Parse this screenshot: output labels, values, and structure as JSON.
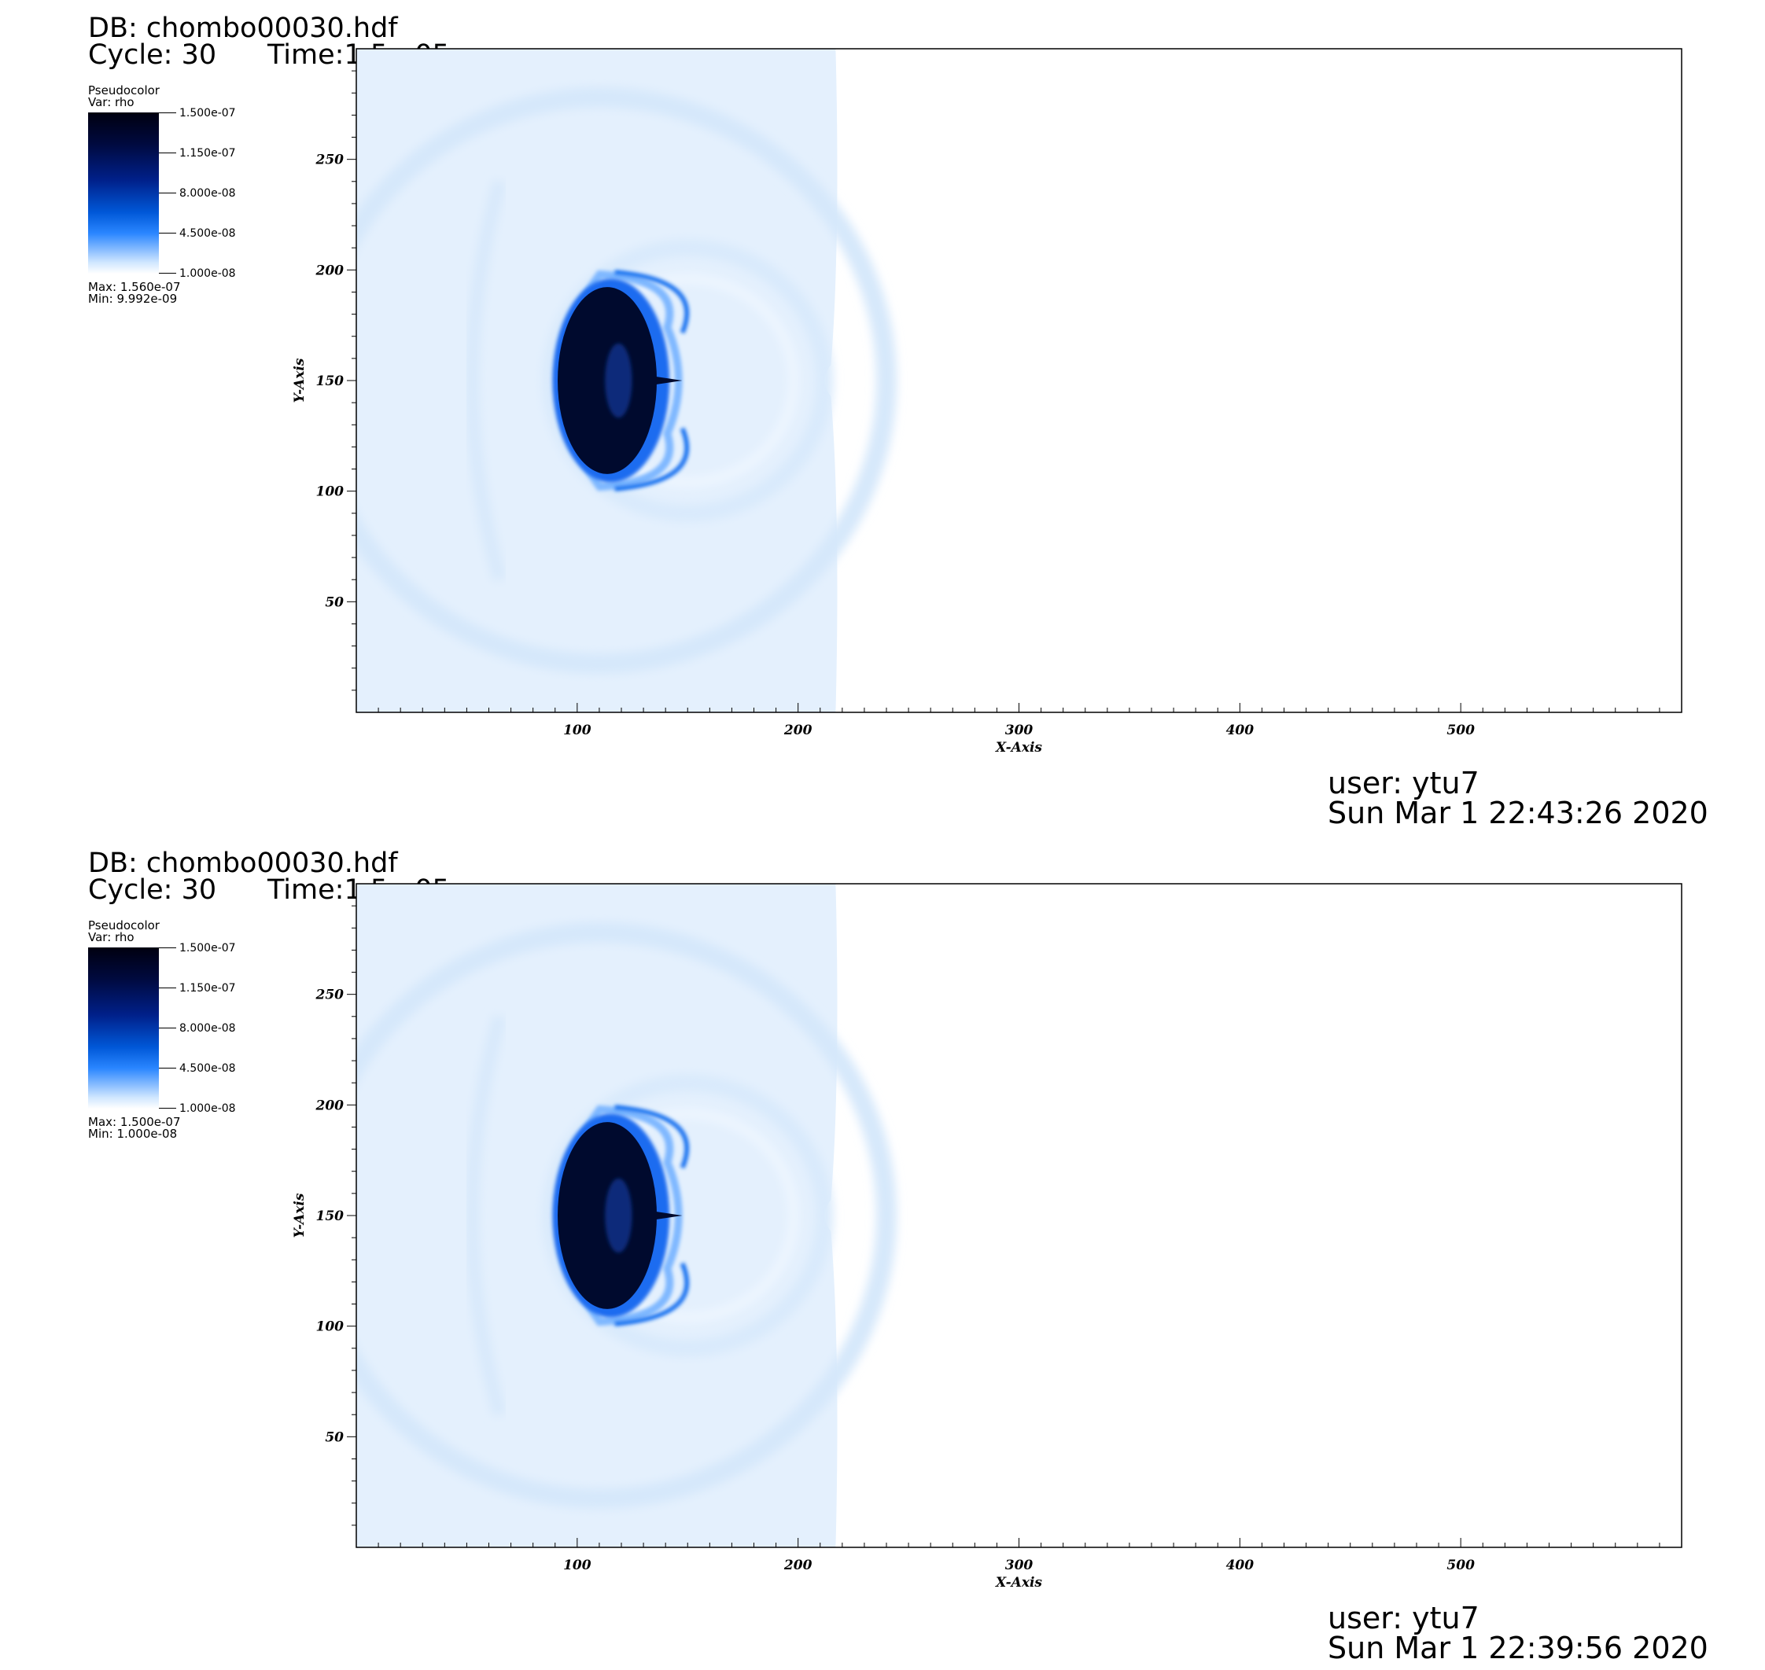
{
  "panels": [
    {
      "db": "DB: chombo00030.hdf",
      "cycle": "Cycle: 30",
      "time": "Time:1.5e-05",
      "legend": {
        "title": "Pseudocolor",
        "var": "Var: rho",
        "ticks": [
          "1.500e-07",
          "1.150e-07",
          "8.000e-08",
          "4.500e-08",
          "1.000e-08"
        ],
        "max": "Max:  1.560e-07",
        "min": "Min:  9.992e-09"
      },
      "user": "user: ytu7",
      "date": "Sun Mar  1 22:43:26 2020"
    },
    {
      "db": "DB: chombo00030.hdf",
      "cycle": "Cycle: 30",
      "time": "Time:1.5e-05",
      "legend": {
        "title": "Pseudocolor",
        "var": "Var: rho",
        "ticks": [
          "1.500e-07",
          "1.150e-07",
          "8.000e-08",
          "4.500e-08",
          "1.000e-08"
        ],
        "max": "Max:  1.500e-07",
        "min": "Min:  1.000e-08"
      },
      "user": "user: ytu7",
      "date": "Sun Mar  1 22:39:56 2020"
    }
  ],
  "chart_data": [
    {
      "type": "heatmap",
      "title": "",
      "variable": "rho",
      "xlabel": "X-Axis",
      "ylabel": "Y-Axis",
      "xlim": [
        0,
        600
      ],
      "ylim": [
        0,
        300
      ],
      "xticks": [
        100,
        200,
        300,
        400,
        500
      ],
      "yticks": [
        50,
        100,
        150,
        200,
        250
      ],
      "colorbar_range": [
        1e-08,
        1.5e-07
      ],
      "data_max": 1.56e-07,
      "data_min": 9.992e-09,
      "filled_x_extent": [
        0,
        217
      ],
      "dense_blob_center": [
        117,
        150
      ],
      "colors": {
        "background": "#e4f0fd",
        "dense": "#000a2e",
        "edge": "#1a6cf0"
      }
    },
    {
      "type": "heatmap",
      "title": "",
      "variable": "rho",
      "xlabel": "X-Axis",
      "ylabel": "Y-Axis",
      "xlim": [
        0,
        600
      ],
      "ylim": [
        0,
        300
      ],
      "xticks": [
        100,
        200,
        300,
        400,
        500
      ],
      "yticks": [
        50,
        100,
        150,
        200,
        250
      ],
      "colorbar_range": [
        1e-08,
        1.5e-07
      ],
      "data_max": 1.5e-07,
      "data_min": 1e-08,
      "filled_x_extent": [
        0,
        217
      ],
      "dense_blob_center": [
        117,
        150
      ],
      "colors": {
        "background": "#e4f0fd",
        "dense": "#000a2e",
        "edge": "#1a6cf0"
      }
    }
  ]
}
